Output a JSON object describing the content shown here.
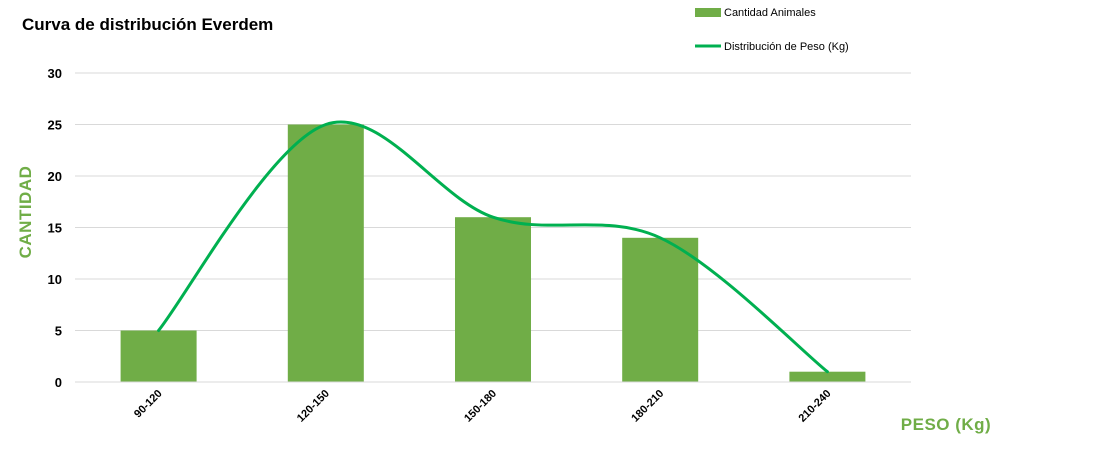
{
  "chart_data": {
    "type": "bar",
    "title": "Curva de distribución Everdem",
    "xlabel": "PESO (Kg)",
    "ylabel": "CANTIDAD",
    "categories": [
      "90-120",
      "120-150",
      "150-180",
      "180-210",
      "210-240"
    ],
    "series": [
      {
        "name": "Cantidad Animales",
        "type": "bar",
        "values": [
          5,
          25,
          16,
          14,
          1
        ],
        "color": "#70ad47"
      },
      {
        "name": "Distribución de Peso (Kg)",
        "type": "line",
        "smooth": true,
        "values": [
          5,
          25,
          16,
          14,
          1
        ],
        "color": "#00b050"
      }
    ],
    "ylim": [
      0,
      30
    ],
    "yticks": [
      0,
      5,
      10,
      15,
      20,
      25,
      30
    ],
    "grid": true,
    "legend_position": "top-right",
    "axis_title_color": "#70ad47"
  }
}
